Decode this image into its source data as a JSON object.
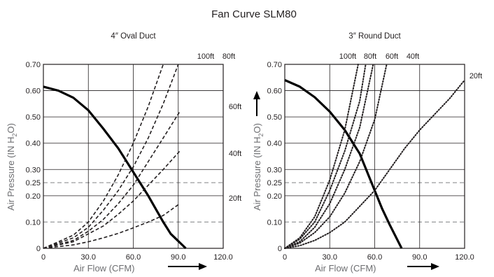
{
  "figure_title": "Fan Curve SLM80",
  "chart_data": [
    {
      "type": "line",
      "title": "4″ Oval Duct",
      "xlabel": "Air Flow (CFM)",
      "ylabel": "Air Pressure (IN H₂O)",
      "ylabel_parts": {
        "pre": "Air Pressure (IN H",
        "sub": "2",
        "post": "O)"
      },
      "xlim": [
        0,
        120
      ],
      "ylim": [
        0,
        0.7
      ],
      "x_ticks": [
        "0",
        "30.0",
        "60.0",
        "90.0",
        "120.0"
      ],
      "y_ticks": [
        "0",
        "0.10",
        "0.20",
        "0.25",
        "0.30",
        "0.40",
        "0.50",
        "0.60",
        "0.70"
      ],
      "reference_lines_y": [
        0.1,
        0.25
      ],
      "series": [
        {
          "style": "fan",
          "points": [
            [
              0,
              0.615
            ],
            [
              10,
              0.6
            ],
            [
              20,
              0.573
            ],
            [
              30,
              0.525
            ],
            [
              40,
              0.455
            ],
            [
              50,
              0.38
            ],
            [
              60,
              0.29
            ],
            [
              70,
              0.2
            ],
            [
              80,
              0.1
            ],
            [
              85,
              0.055
            ],
            [
              95,
              0
            ]
          ]
        },
        {
          "name": "100ft",
          "style": "duct",
          "points": [
            [
              0,
              0
            ],
            [
              20,
              0.05
            ],
            [
              30,
              0.1
            ],
            [
              40,
              0.18
            ],
            [
              50,
              0.28
            ],
            [
              60,
              0.4
            ],
            [
              70,
              0.54
            ],
            [
              80,
              0.7
            ]
          ]
        },
        {
          "name": "80ft",
          "style": "duct",
          "points": [
            [
              0,
              0
            ],
            [
              20,
              0.04
            ],
            [
              30,
              0.08
            ],
            [
              40,
              0.145
            ],
            [
              50,
              0.22
            ],
            [
              60,
              0.31
            ],
            [
              70,
              0.42
            ],
            [
              80,
              0.55
            ],
            [
              90,
              0.7
            ]
          ]
        },
        {
          "name": "60ft",
          "style": "duct",
          "points": [
            [
              0,
              0
            ],
            [
              20,
              0.03
            ],
            [
              30,
              0.065
            ],
            [
              40,
              0.11
            ],
            [
              50,
              0.17
            ],
            [
              60,
              0.24
            ],
            [
              70,
              0.33
            ],
            [
              80,
              0.42
            ],
            [
              91,
              0.52
            ]
          ]
        },
        {
          "name": "40ft",
          "style": "duct",
          "points": [
            [
              0,
              0
            ],
            [
              20,
              0.025
            ],
            [
              40,
              0.085
            ],
            [
              50,
              0.13
            ],
            [
              60,
              0.18
            ],
            [
              70,
              0.24
            ],
            [
              80,
              0.3
            ],
            [
              91,
              0.37
            ]
          ]
        },
        {
          "name": "20ft",
          "style": "duct",
          "points": [
            [
              0,
              0
            ],
            [
              20,
              0.013
            ],
            [
              30,
              0.025
            ],
            [
              40,
              0.04
            ],
            [
              50,
              0.057
            ],
            [
              60,
              0.078
            ],
            [
              70,
              0.1
            ],
            [
              80,
              0.125
            ],
            [
              91,
              0.17
            ]
          ]
        }
      ]
    },
    {
      "type": "line",
      "title": "3″ Round Duct",
      "xlabel": "Air Flow (CFM)",
      "ylabel": "Air Pressure (IN H₂O)",
      "ylabel_parts": {
        "pre": "Air Pressure (IN H",
        "sub": "2",
        "post": "O)"
      },
      "xlim": [
        0,
        120
      ],
      "ylim": [
        0,
        0.7
      ],
      "x_ticks": [
        "0",
        "30.0",
        "60.0",
        "90.0",
        "120.0"
      ],
      "y_ticks": [
        "0",
        "0.10",
        "0.20",
        "0.25",
        "0.30",
        "0.40",
        "0.50",
        "0.60",
        "0.70"
      ],
      "reference_lines_y": [
        0.1,
        0.25
      ],
      "series": [
        {
          "style": "fan",
          "points": [
            [
              0,
              0.64
            ],
            [
              10,
              0.615
            ],
            [
              20,
              0.575
            ],
            [
              30,
              0.52
            ],
            [
              40,
              0.45
            ],
            [
              50,
              0.36
            ],
            [
              60,
              0.22
            ],
            [
              65,
              0.15
            ],
            [
              70,
              0.09
            ],
            [
              78,
              0
            ]
          ]
        },
        {
          "name": "100ft",
          "style": "duct",
          "points": [
            [
              0,
              0
            ],
            [
              10,
              0.04
            ],
            [
              20,
              0.12
            ],
            [
              30,
              0.26
            ],
            [
              40,
              0.45
            ],
            [
              49,
              0.7
            ]
          ]
        },
        {
          "name": "80ft",
          "style": "duct",
          "points": [
            [
              0,
              0
            ],
            [
              10,
              0.035
            ],
            [
              20,
              0.1
            ],
            [
              30,
              0.22
            ],
            [
              40,
              0.37
            ],
            [
              50,
              0.56
            ],
            [
              54,
              0.7
            ]
          ]
        },
        {
          "name": "60ft",
          "style": "duct",
          "points": [
            [
              0,
              0
            ],
            [
              10,
              0.025
            ],
            [
              20,
              0.08
            ],
            [
              30,
              0.17
            ],
            [
              40,
              0.3
            ],
            [
              50,
              0.46
            ],
            [
              59,
              0.7
            ]
          ]
        },
        {
          "name": "40ft",
          "style": "duct",
          "points": [
            [
              0,
              0
            ],
            [
              10,
              0.02
            ],
            [
              20,
              0.06
            ],
            [
              30,
              0.12
            ],
            [
              40,
              0.21
            ],
            [
              50,
              0.33
            ],
            [
              60,
              0.49
            ],
            [
              68,
              0.7
            ]
          ]
        },
        {
          "name": "20ft",
          "style": "duct",
          "points": [
            [
              0,
              0
            ],
            [
              10,
              0.01
            ],
            [
              20,
              0.03
            ],
            [
              30,
              0.06
            ],
            [
              40,
              0.1
            ],
            [
              50,
              0.16
            ],
            [
              60,
              0.22
            ],
            [
              70,
              0.3
            ],
            [
              80,
              0.38
            ],
            [
              90,
              0.45
            ],
            [
              110,
              0.57
            ],
            [
              120,
              0.64
            ]
          ]
        }
      ]
    }
  ]
}
